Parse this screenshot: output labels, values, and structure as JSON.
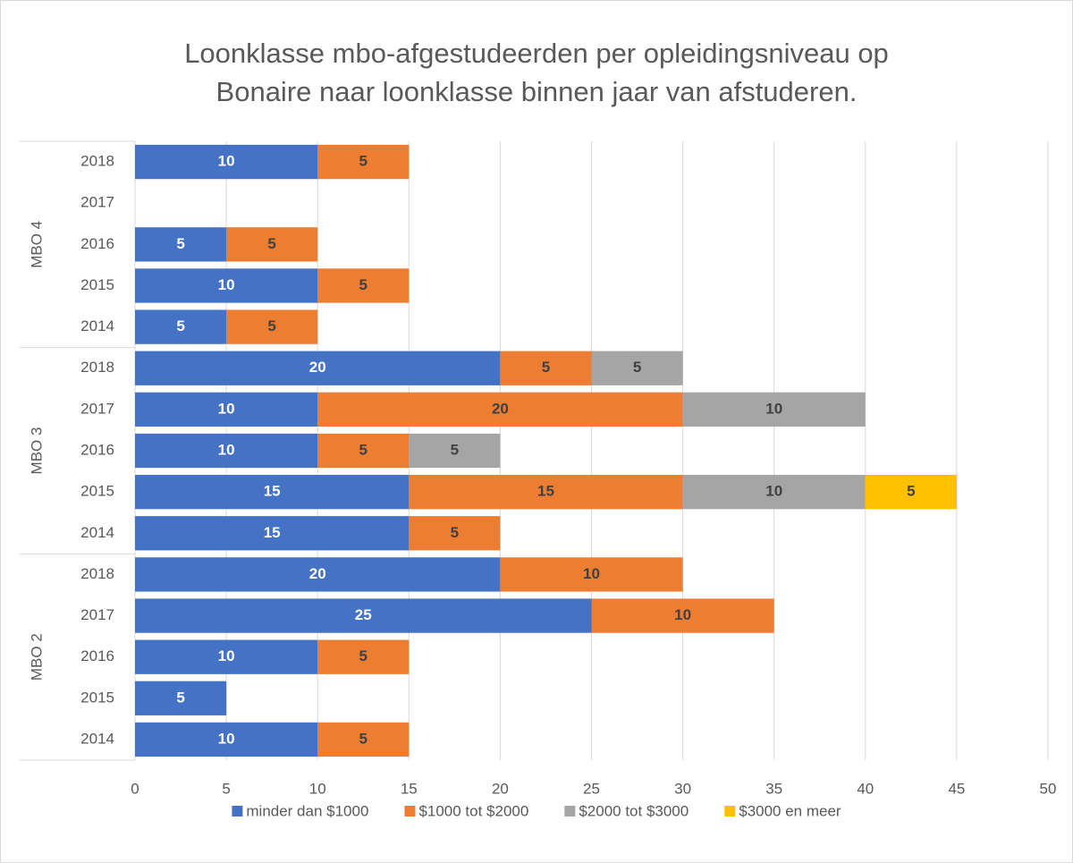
{
  "chart_data": {
    "type": "stacked-barh",
    "title": "Loonklasse mbo-afgestudeerden per opleidingsniveau op Bonaire naar loonklasse binnen jaar van afstuderen.",
    "groups": [
      {
        "name": "MBO 4",
        "categories": [
          "2018",
          "2017",
          "2016",
          "2015",
          "2014"
        ]
      },
      {
        "name": "MBO 3",
        "categories": [
          "2018",
          "2017",
          "2016",
          "2015",
          "2014"
        ]
      },
      {
        "name": "MBO 2",
        "categories": [
          "2018",
          "2017",
          "2016",
          "2015",
          "2014"
        ]
      }
    ],
    "series": [
      {
        "name": "minder dan $1000",
        "color": "#4472c4",
        "label_color": "#ffffff",
        "values": [
          10,
          null,
          5,
          10,
          5,
          20,
          10,
          10,
          15,
          15,
          20,
          25,
          10,
          5,
          10
        ]
      },
      {
        "name": "$1000 tot $2000",
        "color": "#ed7d31",
        "label_color": "#404040",
        "values": [
          5,
          null,
          5,
          5,
          5,
          5,
          20,
          5,
          15,
          5,
          10,
          10,
          5,
          null,
          5
        ]
      },
      {
        "name": "$2000 tot $3000",
        "color": "#a5a5a5",
        "label_color": "#404040",
        "values": [
          null,
          null,
          null,
          null,
          null,
          5,
          10,
          5,
          10,
          null,
          null,
          null,
          null,
          null,
          null
        ]
      },
      {
        "name": "$3000 en meer",
        "color": "#ffc000",
        "label_color": "#404040",
        "values": [
          null,
          null,
          null,
          null,
          null,
          null,
          null,
          null,
          5,
          null,
          null,
          null,
          null,
          null,
          null
        ]
      }
    ],
    "xlim": [
      0,
      50
    ],
    "xticks": [
      0,
      5,
      10,
      15,
      20,
      25,
      30,
      35,
      40,
      45,
      50
    ],
    "grid": true,
    "legend": "bottom"
  }
}
